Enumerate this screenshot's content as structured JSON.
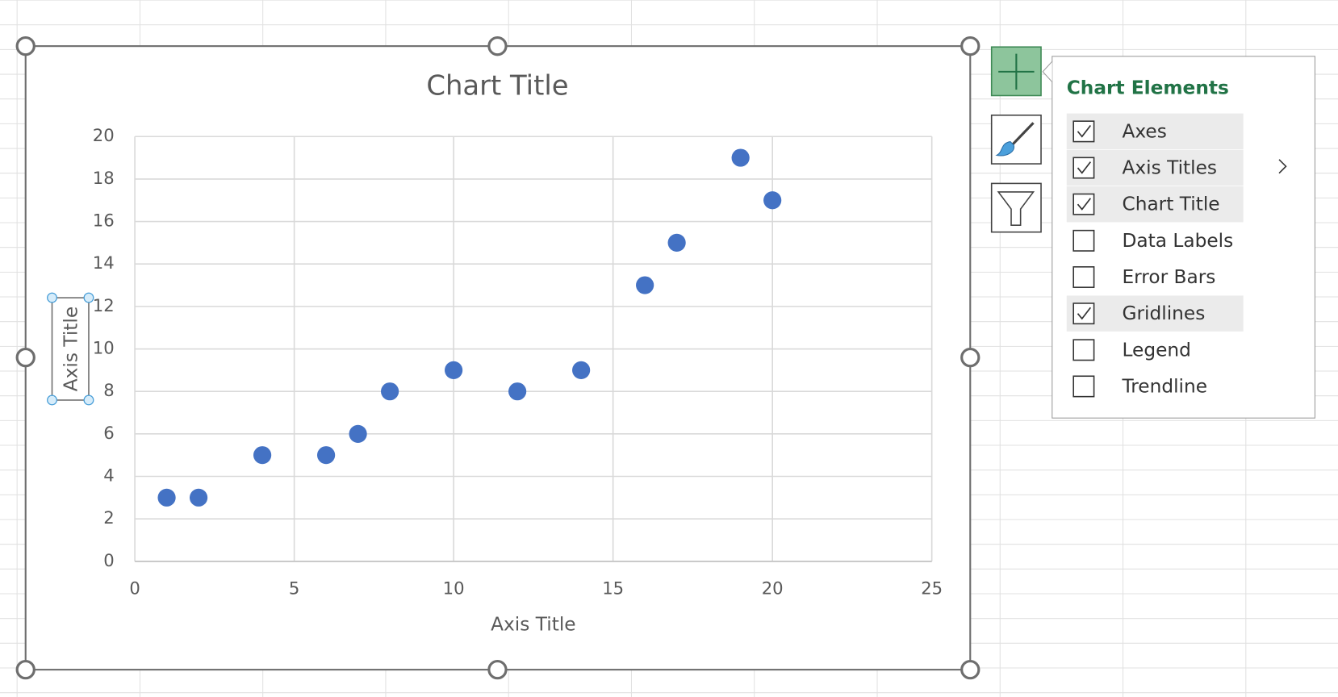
{
  "chart_data": {
    "type": "scatter",
    "title": "Chart Title",
    "x_label": "Axis Title",
    "y_label": "Axis Title",
    "x": [
      1,
      2,
      4,
      6,
      7,
      8,
      10,
      12,
      14,
      16,
      17,
      19,
      20
    ],
    "values": [
      3,
      3,
      5,
      5,
      6,
      8,
      9,
      8,
      9,
      13,
      15,
      19,
      17
    ],
    "color": "#4472c4",
    "xlim": [
      0,
      25
    ],
    "xticks": [
      0,
      5,
      10,
      15,
      20,
      25
    ],
    "ylim": [
      0,
      20
    ],
    "yticks": [
      0,
      2,
      4,
      6,
      8,
      10,
      12,
      14,
      16,
      18,
      20
    ],
    "grid": true
  },
  "panel": {
    "title": "Chart Elements",
    "items": [
      {
        "label": "Axes",
        "checked": true
      },
      {
        "label": "Axis Titles",
        "checked": true
      },
      {
        "label": "Chart Title",
        "checked": true
      },
      {
        "label": "Data Labels",
        "checked": false
      },
      {
        "label": "Error Bars",
        "checked": false
      },
      {
        "label": "Gridlines",
        "checked": true
      },
      {
        "label": "Legend",
        "checked": false
      },
      {
        "label": "Trendline",
        "checked": false
      }
    ]
  }
}
